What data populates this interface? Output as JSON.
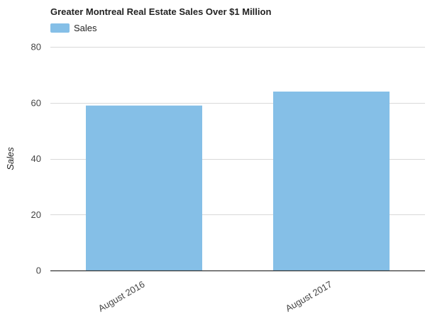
{
  "chart_data": {
    "type": "bar",
    "title": "Greater Montreal Real Estate Sales Over $1 Million",
    "categories": [
      "August 2016",
      "August 2017"
    ],
    "series": [
      {
        "name": "Sales",
        "values": [
          59,
          64
        ]
      }
    ],
    "xlabel": "",
    "ylabel": "Sales",
    "ylim": [
      0,
      80
    ],
    "yticks": [
      0,
      20,
      40,
      60,
      80
    ],
    "grid": true,
    "legend_position": "top-left",
    "bar_color": "#85bfe7",
    "grid_color": "#d9d9d9",
    "baseline_color": "#333333",
    "text_color": "#444444"
  }
}
